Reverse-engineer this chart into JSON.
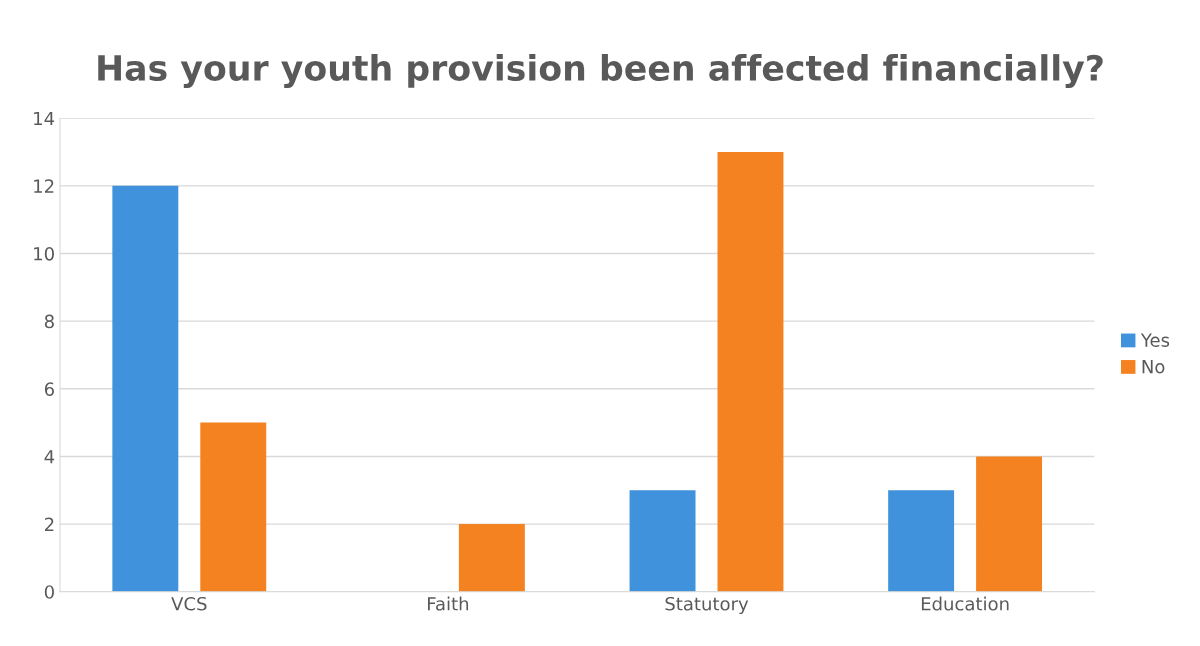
{
  "chart_data": {
    "type": "bar",
    "title": "Has your youth provision been affected financially?",
    "categories": [
      "VCS",
      "Faith",
      "Statutory",
      "Education"
    ],
    "series": [
      {
        "name": "Yes",
        "color": "#3f92db",
        "values": [
          12,
          0,
          3,
          3
        ]
      },
      {
        "name": "No",
        "color": "#f58220",
        "values": [
          5,
          2,
          13,
          4
        ]
      }
    ],
    "ylim": [
      0,
      14
    ],
    "yticks": [
      0,
      2,
      4,
      6,
      8,
      10,
      12,
      14
    ],
    "grid": "y",
    "legend": "right"
  }
}
